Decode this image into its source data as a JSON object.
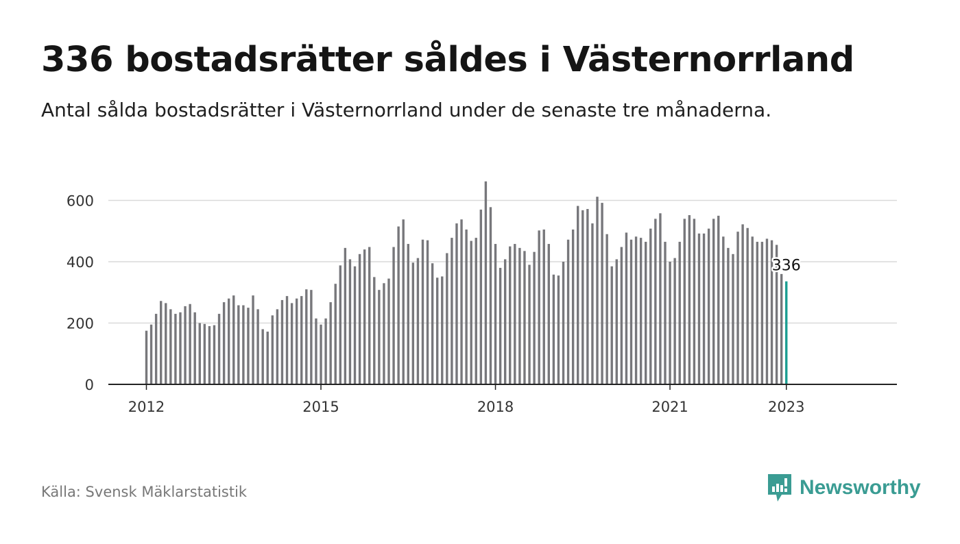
{
  "header": {
    "title": "336 bostadsrätter såldes i Västernorrland",
    "subtitle": "Antal sålda bostadsrätter i Västernorrland under de senaste tre månaderna."
  },
  "footer": {
    "source": "Källa: Svensk Mäklarstatistik",
    "brand": "Newsworthy"
  },
  "colors": {
    "bar": "#77777b",
    "highlight": "#1b9e92",
    "brand": "#3a9c93",
    "grid": "#d9d9d9",
    "axis": "#222222",
    "text": "#333333"
  },
  "chart_data": {
    "type": "bar",
    "start": "2012-01",
    "ylim": [
      0,
      680
    ],
    "yticks": [
      0,
      200,
      400,
      600
    ],
    "xticks": [
      {
        "label": "2012",
        "x": "2012-01"
      },
      {
        "label": "2015",
        "x": "2015-01"
      },
      {
        "label": "2018",
        "x": "2018-01"
      },
      {
        "label": "2021",
        "x": "2021-01"
      },
      {
        "label": "2023",
        "x": "2023-01"
      }
    ],
    "grid": true,
    "highlight_label": "336",
    "values": [
      175,
      195,
      230,
      272,
      265,
      245,
      230,
      235,
      255,
      262,
      235,
      200,
      197,
      190,
      193,
      230,
      268,
      280,
      290,
      258,
      258,
      250,
      290,
      245,
      180,
      172,
      225,
      245,
      275,
      288,
      265,
      280,
      288,
      310,
      308,
      215,
      195,
      215,
      268,
      328,
      388,
      445,
      408,
      385,
      425,
      440,
      448,
      350,
      308,
      330,
      345,
      448,
      515,
      538,
      458,
      397,
      412,
      472,
      470,
      395,
      348,
      352,
      428,
      478,
      525,
      538,
      505,
      468,
      478,
      570,
      662,
      578,
      458,
      380,
      408,
      450,
      458,
      445,
      435,
      390,
      432,
      502,
      505,
      458,
      358,
      355,
      400,
      472,
      505,
      582,
      568,
      572,
      525,
      612,
      592,
      490,
      385,
      408,
      448,
      495,
      472,
      482,
      478,
      465,
      508,
      540,
      558,
      465,
      400,
      412,
      465,
      540,
      552,
      540,
      492,
      492,
      508,
      540,
      550,
      482,
      445,
      425,
      498,
      522,
      510,
      482,
      465,
      465,
      475,
      470,
      455,
      360,
      336
    ]
  }
}
